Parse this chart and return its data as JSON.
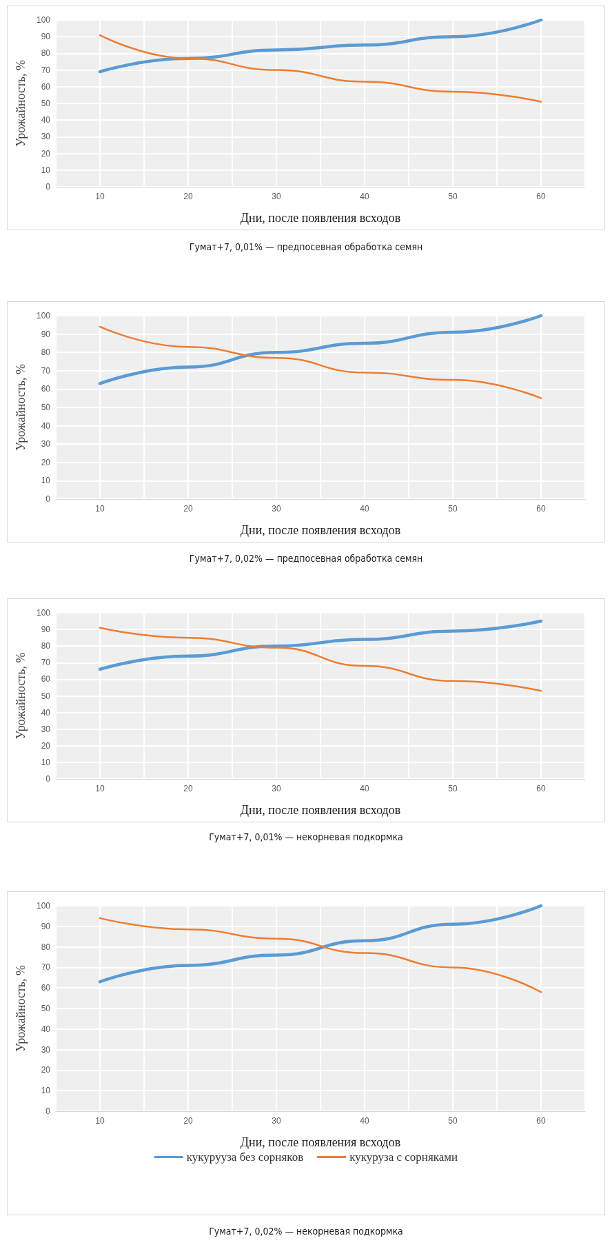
{
  "chart_data": [
    {
      "type": "line",
      "xlabel": "Дни, после появления всходов",
      "ylabel": "Урожайность, %",
      "annotations": [
        "Гумат+7, 0,01% — предпосевная обработка семян"
      ],
      "x": [
        10,
        20,
        30,
        40,
        50,
        60
      ],
      "xlim": [
        5,
        65
      ],
      "xticks": [
        {
          "value": 5,
          "label": null
        },
        10,
        {
          "value": 15,
          "label": null
        },
        20,
        {
          "value": 25,
          "label": null
        },
        30,
        {
          "value": 35,
          "label": null
        },
        40,
        {
          "value": 45,
          "label": null
        },
        50,
        {
          "value": 55,
          "label": null
        },
        60,
        {
          "value": 65,
          "label": null
        }
      ],
      "ylim": [
        0,
        100
      ],
      "yticks": [
        0,
        10,
        20,
        30,
        40,
        50,
        60,
        70,
        80,
        90,
        100
      ],
      "grid": true,
      "marker": "none",
      "series": [
        {
          "color": "#5b9bd5",
          "values": [
            69,
            77,
            82,
            85,
            90,
            100
          ]
        },
        {
          "color": "#ed7d31",
          "values": [
            91,
            77,
            70,
            63,
            57,
            51
          ]
        }
      ]
    },
    {
      "type": "line",
      "xlabel": "Дни, после появления всходов",
      "ylabel": "Урожайность, %",
      "annotations": [
        "Гумат+7, 0,02% — предпосевная обработка семян"
      ],
      "x": [
        10,
        20,
        30,
        40,
        50,
        60
      ],
      "xlim": [
        5,
        65
      ],
      "xticks": [
        {
          "value": 5,
          "label": null
        },
        10,
        {
          "value": 15,
          "label": null
        },
        20,
        {
          "value": 25,
          "label": null
        },
        30,
        {
          "value": 35,
          "label": null
        },
        40,
        {
          "value": 45,
          "label": null
        },
        50,
        {
          "value": 55,
          "label": null
        },
        60,
        {
          "value": 65,
          "label": null
        }
      ],
      "ylim": [
        0,
        100
      ],
      "yticks": [
        0,
        10,
        20,
        30,
        40,
        50,
        60,
        70,
        80,
        90,
        100
      ],
      "grid": true,
      "marker": "none",
      "series": [
        {
          "color": "#5b9bd5",
          "values": [
            63,
            72,
            80,
            85,
            91,
            100
          ]
        },
        {
          "color": "#ed7d31",
          "values": [
            94,
            83,
            77,
            69,
            65,
            55
          ]
        }
      ]
    },
    {
      "type": "line",
      "xlabel": "Дни, после появления всходов",
      "ylabel": "Урожайность, %",
      "annotations": [
        "Гумат+7, 0,01% — некорневая подкормка"
      ],
      "x": [
        10,
        20,
        30,
        40,
        50,
        60
      ],
      "xlim": [
        5,
        65
      ],
      "xticks": [
        {
          "value": 5,
          "label": null
        },
        10,
        {
          "value": 15,
          "label": null
        },
        20,
        {
          "value": 25,
          "label": null
        },
        30,
        {
          "value": 35,
          "label": null
        },
        40,
        {
          "value": 45,
          "label": null
        },
        50,
        {
          "value": 55,
          "label": null
        },
        60,
        {
          "value": 65,
          "label": null
        }
      ],
      "ylim": [
        0,
        100
      ],
      "yticks": [
        0,
        10,
        20,
        30,
        40,
        50,
        60,
        70,
        80,
        90,
        100
      ],
      "grid": true,
      "marker": "none",
      "series": [
        {
          "color": "#5b9bd5",
          "values": [
            66,
            74,
            80,
            84,
            89,
            95
          ]
        },
        {
          "color": "#ed7d31",
          "values": [
            91,
            85,
            79,
            68,
            59,
            53
          ]
        }
      ]
    },
    {
      "type": "line",
      "xlabel": "Дни, после появления всходов",
      "ylabel": "Урожайность, %",
      "annotations": [
        "Гумат+7, 0,02% — некорневая подкормка"
      ],
      "x": [
        10,
        20,
        30,
        40,
        50,
        60
      ],
      "xlim": [
        5,
        65
      ],
      "xticks": [
        {
          "value": 5,
          "label": null
        },
        10,
        {
          "value": 15,
          "label": null
        },
        20,
        {
          "value": 25,
          "label": null
        },
        30,
        {
          "value": 35,
          "label": null
        },
        40,
        {
          "value": 45,
          "label": null
        },
        50,
        {
          "value": 55,
          "label": null
        },
        60,
        {
          "value": 65,
          "label": null
        }
      ],
      "ylim": [
        0,
        100
      ],
      "yticks": [
        0,
        10,
        20,
        30,
        40,
        50,
        60,
        70,
        80,
        90,
        100
      ],
      "grid": true,
      "marker": "none",
      "legend": "bottom",
      "series": [
        {
          "name": "кукурууза без сорняков",
          "color": "#5b9bd5",
          "values": [
            63,
            71,
            76,
            83,
            91,
            100
          ]
        },
        {
          "name": "кукуруза с сорняками",
          "color": "#ed7d31",
          "values": [
            94,
            88.5,
            84,
            77,
            70,
            58
          ]
        }
      ]
    }
  ]
}
